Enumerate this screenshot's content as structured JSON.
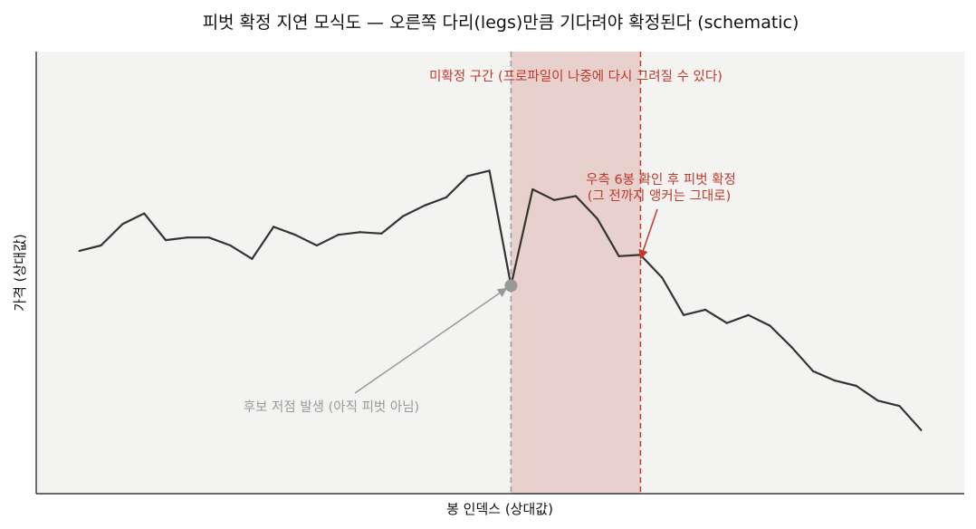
{
  "chart_data": {
    "type": "line",
    "title": "피벗 확정 지연 모식도 — 오른쪽 다리(legs)만큼 기다려야 확정된다 (schematic)",
    "xlabel": "봉 인덱스 (상대값)",
    "ylabel": "가격 (상대값)",
    "xlim": [
      -2,
      41
    ],
    "ylim": [
      -3.48,
      13.05
    ],
    "grid": false,
    "series": [
      {
        "color": "#333333",
        "x": [
          0,
          1,
          2,
          3,
          4,
          5,
          6,
          7,
          8,
          9,
          10,
          11,
          12,
          13,
          14,
          15,
          16,
          17,
          18,
          19,
          20,
          21,
          22,
          23,
          24,
          25,
          26,
          27,
          28,
          29,
          30,
          31,
          32,
          33,
          34,
          35,
          36,
          37,
          38,
          39
        ],
        "y": [
          5.6,
          5.8,
          6.6,
          7.0,
          6.0,
          6.1,
          6.1,
          5.8,
          5.3,
          6.5,
          6.2,
          5.8,
          6.2,
          6.3,
          6.25,
          6.9,
          7.3,
          7.6,
          8.4,
          8.6,
          4.3,
          7.9,
          7.5,
          7.65,
          6.8,
          5.4,
          5.45,
          4.6,
          3.2,
          3.4,
          2.9,
          3.2,
          2.8,
          2.0,
          1.1,
          0.75,
          0.55,
          0.0,
          -0.2,
          -1.1
        ]
      }
    ],
    "pivot": {
      "x": 20,
      "y": 4.3,
      "label": "후보 저점 발생 (아직 피벗 아님)",
      "color": "#999999"
    },
    "unconfirmed_region": {
      "x_start": 20,
      "x_end": 26,
      "label": "미확정 구간 (프로파일이 나중에 다시 그려질 수 있다)",
      "color": "#c0392b"
    },
    "confirm": {
      "x": 26,
      "y": 5.45,
      "line1": "우측 6봉 확인 후 피벗 확정",
      "line2": "(그 전까지 앵커는 그대로)",
      "color": "#c0392b"
    },
    "colors": {
      "plot_background": "#f3f3f2",
      "region_fill": "#e8d0cc"
    }
  }
}
